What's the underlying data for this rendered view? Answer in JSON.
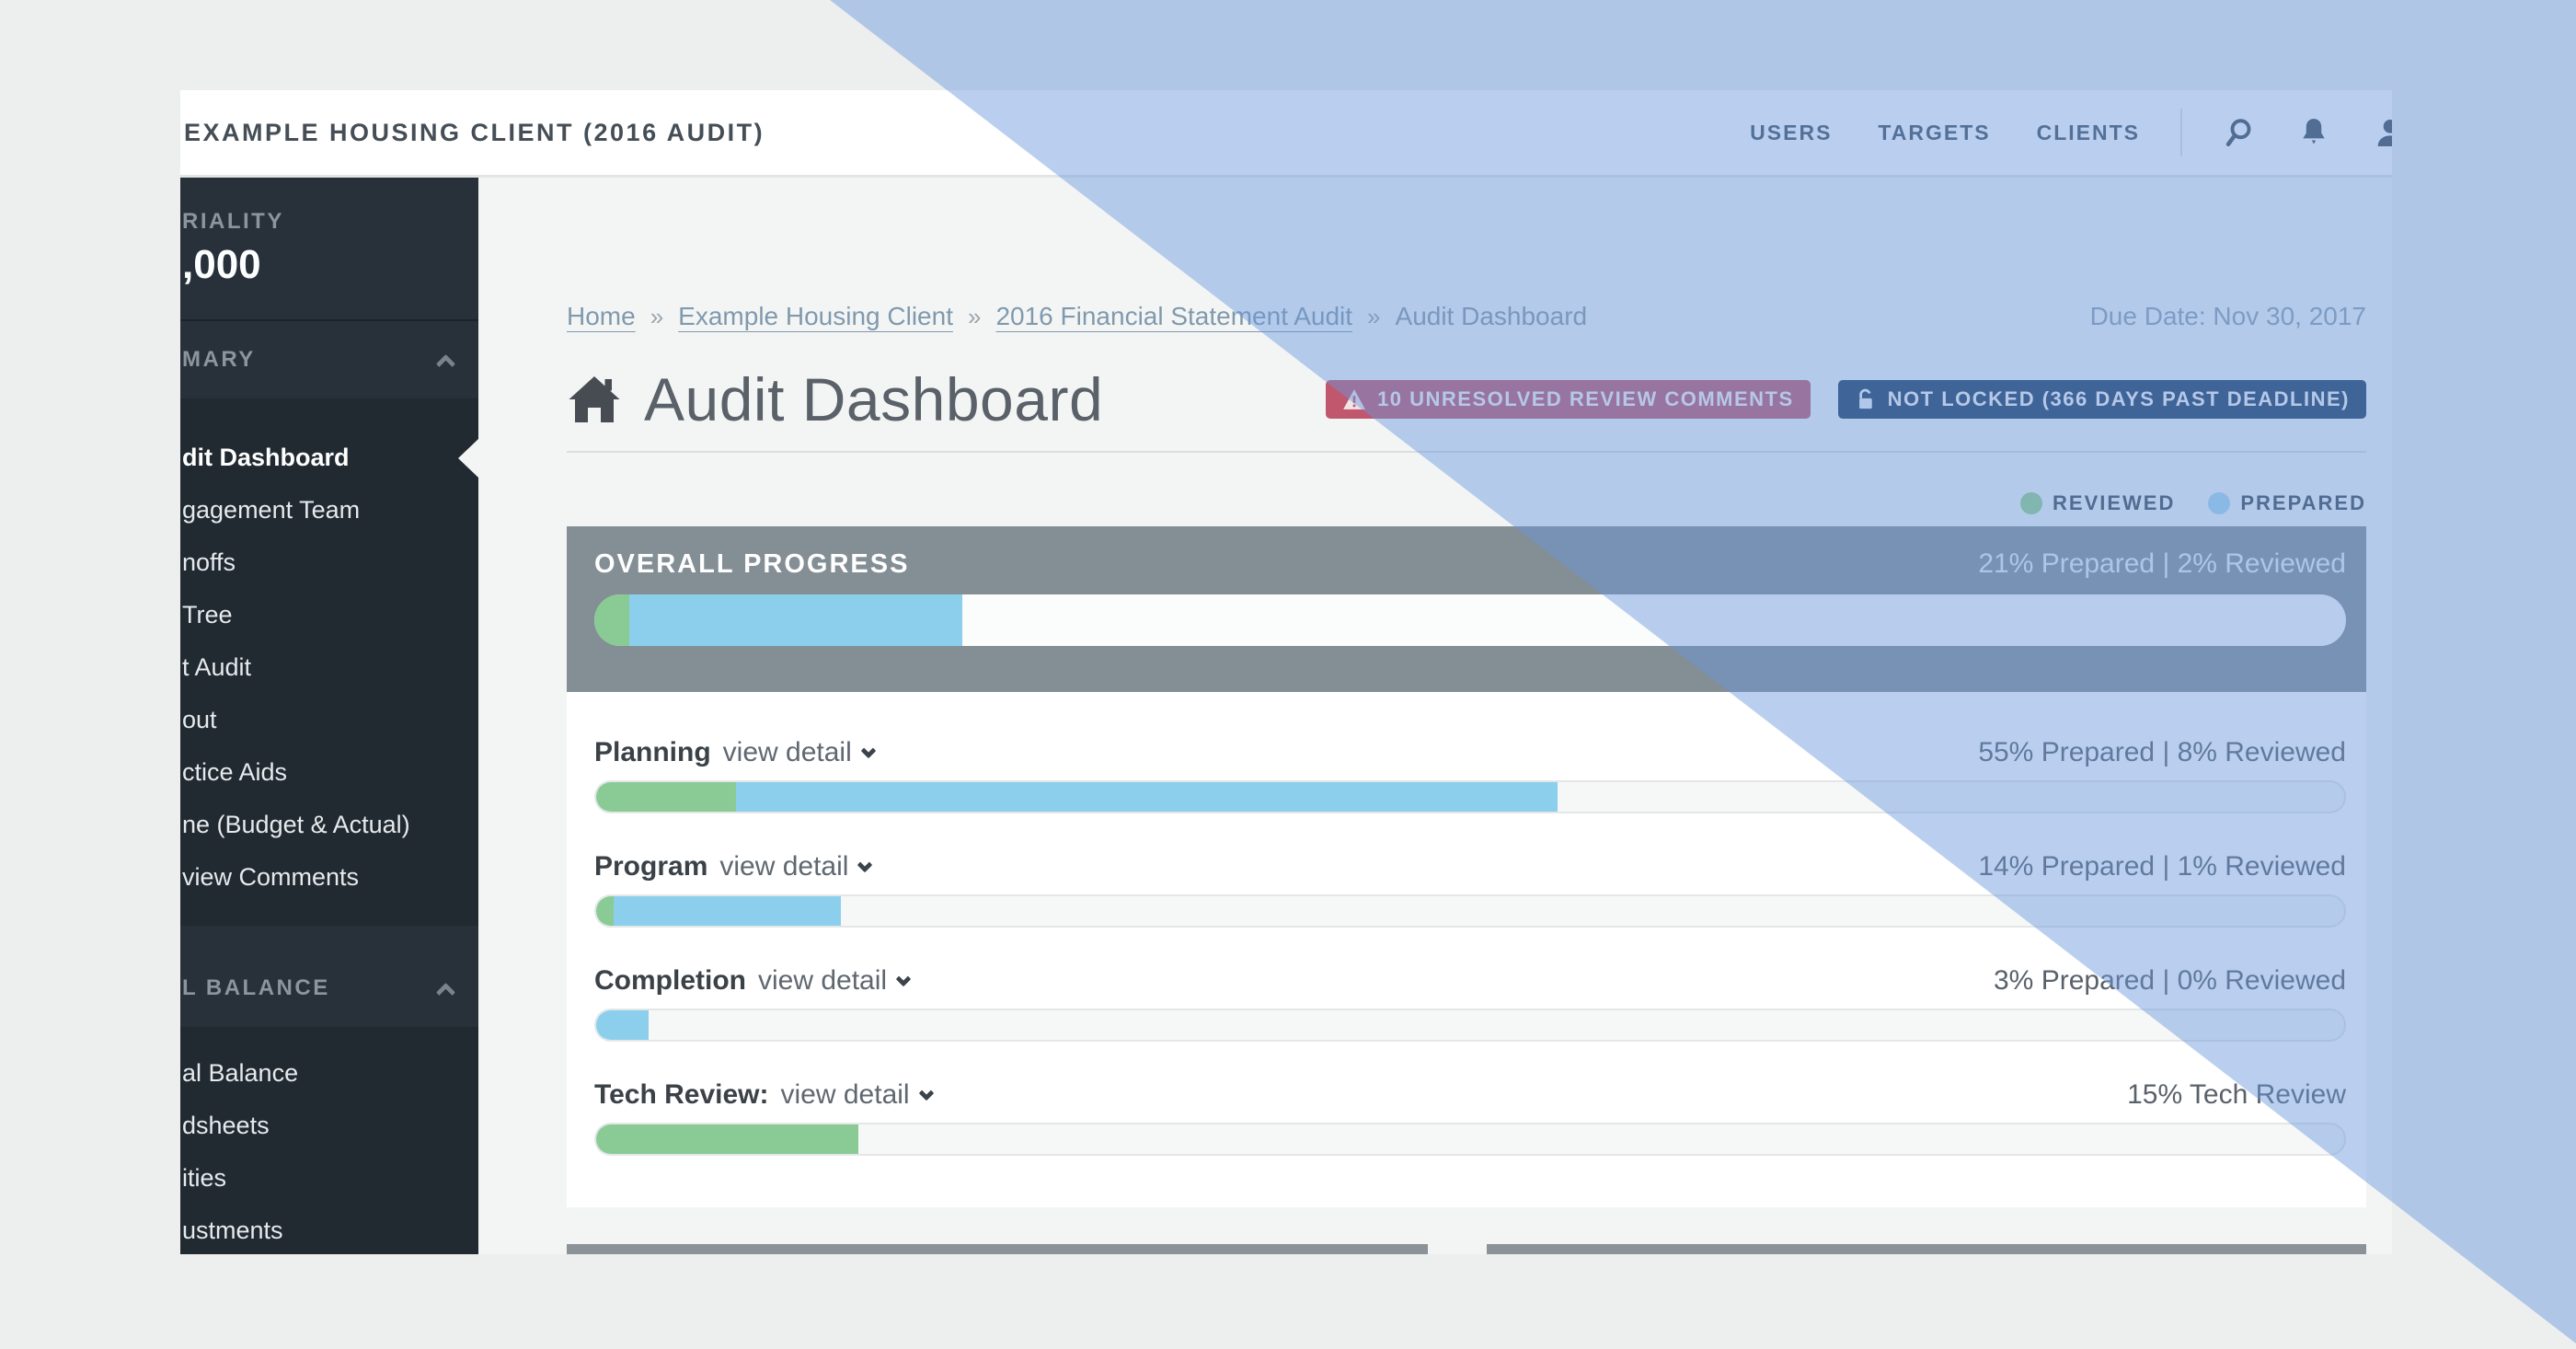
{
  "topbar": {
    "client_title": "EXAMPLE HOUSING CLIENT (2016 AUDIT)",
    "nav": [
      {
        "label": "USERS"
      },
      {
        "label": "TARGETS"
      },
      {
        "label": "CLIENTS"
      }
    ]
  },
  "sidebar": {
    "materiality_label": "RIALITY",
    "materiality_value": ",000",
    "sections": [
      {
        "header": "MARY",
        "items": [
          {
            "label": "dit Dashboard",
            "active": true
          },
          {
            "label": "gagement Team"
          },
          {
            "label": "noffs"
          },
          {
            "label": "Tree"
          },
          {
            "label": "t Audit"
          },
          {
            "label": "out"
          },
          {
            "label": "ctice Aids"
          },
          {
            "label": "ne (Budget & Actual)"
          },
          {
            "label": "view Comments"
          }
        ]
      },
      {
        "header": "L BALANCE",
        "items": [
          {
            "label": "al Balance"
          },
          {
            "label": "dsheets"
          },
          {
            "label": "ities"
          },
          {
            "label": "ustments"
          }
        ]
      }
    ]
  },
  "breadcrumb": {
    "separator": "»",
    "items": [
      "Home",
      "Example Housing Client",
      "2016 Financial Statement Audit",
      "Audit Dashboard"
    ],
    "due_date": "Due Date: Nov 30, 2017"
  },
  "header": {
    "title": "Audit Dashboard",
    "badges": [
      {
        "label": "10 UNRESOLVED REVIEW COMMENTS",
        "color": "#c0576d",
        "icon": "warning-icon"
      },
      {
        "label": "NOT LOCKED (366 DAYS PAST DEADLINE)",
        "color": "#1d3a5e",
        "icon": "unlock-icon"
      }
    ]
  },
  "legend": [
    {
      "label": "REVIEWED",
      "color": "#97cf8b"
    },
    {
      "label": "PREPARED",
      "color": "#a6d7ef"
    }
  ],
  "progress": {
    "overall": {
      "label": "OVERALL PROGRESS",
      "value_text": "21% Prepared | 2% Reviewed",
      "prepared_pct": 21,
      "reviewed_pct": 2
    },
    "rows": [
      {
        "label": "Planning",
        "link": "view detail",
        "value_text": "55% Prepared | 8% Reviewed",
        "prepared_pct": 55,
        "reviewed_pct": 8
      },
      {
        "label": "Program",
        "link": "view detail",
        "value_text": "14% Prepared | 1% Reviewed",
        "prepared_pct": 14,
        "reviewed_pct": 1
      },
      {
        "label": "Completion",
        "link": "view detail",
        "value_text": "3% Prepared | 0% Reviewed",
        "prepared_pct": 3,
        "reviewed_pct": 0
      },
      {
        "label": "Tech Review:",
        "link": "view detail",
        "value_text": "15% Tech Review",
        "tech_pct": 15
      }
    ],
    "colors": {
      "prepared": "#8bcfec",
      "reviewed": "#8acb95"
    }
  }
}
